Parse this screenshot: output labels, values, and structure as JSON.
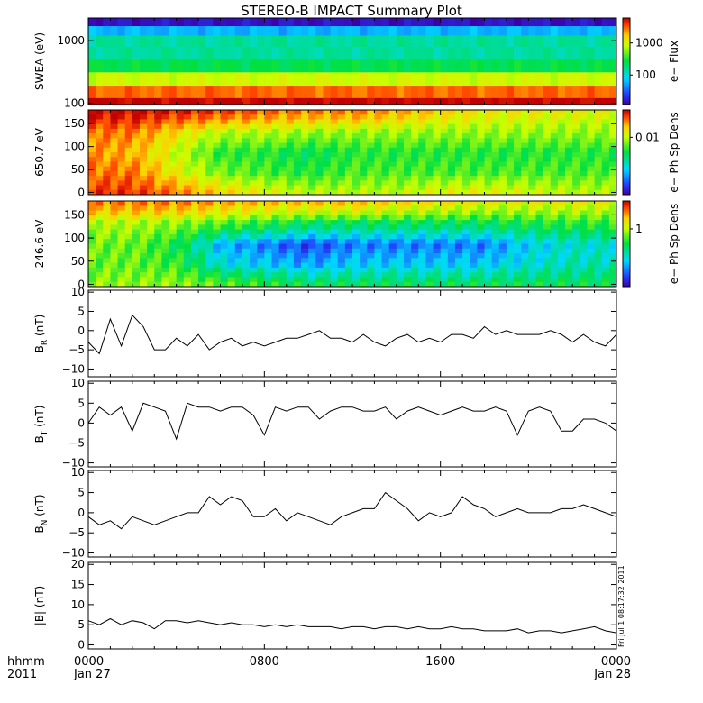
{
  "title": "STEREO-B IMPACT Summary Plot",
  "stamp": "Fri Jul  1 08:17:32 2011",
  "time_axis": {
    "row1_label": "hhmm",
    "row2_label": "2011",
    "ticks": [
      {
        "hour": 0,
        "label": "0000",
        "date": "Jan 27"
      },
      {
        "hour": 8,
        "label": "0800",
        "date": ""
      },
      {
        "hour": 16,
        "label": "1600",
        "date": ""
      },
      {
        "hour": 24,
        "label": "0000",
        "date": "Jan 28"
      }
    ]
  },
  "chart_data": [
    {
      "type": "heatmap",
      "ylabel": "SWEA (eV)",
      "ylog": true,
      "ylim": [
        95,
        2300
      ],
      "yticks": [
        {
          "value": 100,
          "label": "100"
        },
        {
          "value": 1000,
          "label": "1000"
        }
      ],
      "colorbar_label": "e− Flux",
      "colorbar_ticks": [
        {
          "value": 100,
          "label": "100"
        },
        {
          "value": 1000,
          "label": "1000"
        }
      ],
      "colorbar_log": true,
      "colorbar_range": [
        12,
        6000
      ],
      "x_hours": [
        0,
        2,
        4,
        6,
        8,
        10,
        12,
        14,
        16,
        18,
        20,
        22,
        24
      ],
      "energies_eV": [
        100,
        150,
        250,
        400,
        650,
        1000,
        1500,
        2000
      ],
      "profile_flux": [
        6000,
        3000,
        900,
        250,
        150,
        150,
        60,
        15
      ]
    },
    {
      "type": "heatmap",
      "ylabel": "650.7 eV",
      "ylim": [
        -5,
        180
      ],
      "yticks": [
        {
          "value": 0,
          "label": "0"
        },
        {
          "value": 50,
          "label": "50"
        },
        {
          "value": 100,
          "label": "100"
        },
        {
          "value": 150,
          "label": "150"
        }
      ],
      "colorbar_label": "e− Ph Sp Dens",
      "colorbar_ticks": [
        {
          "value": 0.01,
          "label": "0.01"
        }
      ],
      "colorbar_log": true,
      "colorbar_range": [
        0.001,
        0.03
      ],
      "x_hours": [
        0,
        2,
        4,
        6,
        8,
        10,
        12,
        14,
        16,
        18,
        20,
        22,
        24
      ],
      "pitch_angles": [
        0,
        45,
        90,
        135,
        180
      ],
      "values": [
        [
          0.025,
          0.025,
          0.02,
          0.015,
          0.012,
          0.01,
          0.01,
          0.01,
          0.012,
          0.012,
          0.011,
          0.01,
          0.01
        ],
        [
          0.02,
          0.02,
          0.012,
          0.008,
          0.007,
          0.006,
          0.007,
          0.007,
          0.007,
          0.007,
          0.007,
          0.007,
          0.007
        ],
        [
          0.018,
          0.016,
          0.01,
          0.006,
          0.006,
          0.005,
          0.006,
          0.006,
          0.006,
          0.006,
          0.006,
          0.006,
          0.006
        ],
        [
          0.02,
          0.02,
          0.014,
          0.01,
          0.01,
          0.009,
          0.009,
          0.009,
          0.009,
          0.009,
          0.009,
          0.009,
          0.009
        ],
        [
          0.03,
          0.03,
          0.028,
          0.025,
          0.022,
          0.02,
          0.02,
          0.018,
          0.015,
          0.013,
          0.013,
          0.012,
          0.012
        ]
      ]
    },
    {
      "type": "heatmap",
      "ylabel": "246.6 eV",
      "ylim": [
        -5,
        180
      ],
      "yticks": [
        {
          "value": 0,
          "label": "0"
        },
        {
          "value": 50,
          "label": "50"
        },
        {
          "value": 100,
          "label": "100"
        },
        {
          "value": 150,
          "label": "150"
        }
      ],
      "colorbar_label": "e− Ph Sp Dens",
      "colorbar_ticks": [
        {
          "value": 1,
          "label": "1"
        }
      ],
      "colorbar_log": true,
      "colorbar_range": [
        0.15,
        2.5
      ],
      "x_hours": [
        0,
        2,
        4,
        6,
        8,
        10,
        12,
        14,
        16,
        18,
        20,
        22,
        24
      ],
      "pitch_angles": [
        0,
        45,
        90,
        135,
        180
      ],
      "values": [
        [
          0.9,
          0.9,
          0.9,
          0.8,
          0.7,
          0.6,
          0.6,
          0.6,
          0.6,
          0.6,
          0.6,
          0.6,
          0.6
        ],
        [
          0.8,
          0.8,
          0.7,
          0.4,
          0.35,
          0.3,
          0.35,
          0.35,
          0.35,
          0.35,
          0.4,
          0.45,
          0.45
        ],
        [
          0.8,
          0.8,
          0.6,
          0.3,
          0.25,
          0.2,
          0.25,
          0.25,
          0.25,
          0.25,
          0.35,
          0.4,
          0.4
        ],
        [
          1.0,
          1.0,
          0.9,
          0.8,
          0.7,
          0.6,
          0.6,
          0.6,
          0.6,
          0.6,
          0.65,
          0.7,
          0.7
        ],
        [
          1.8,
          1.8,
          1.8,
          1.6,
          1.5,
          1.5,
          1.5,
          1.4,
          1.3,
          1.2,
          1.2,
          1.2,
          1.2
        ]
      ]
    },
    {
      "type": "line",
      "ylabel": "B",
      "ysub": "R",
      "yunit": "(nT)",
      "ylim": [
        -12,
        10.5
      ],
      "yticks": [
        {
          "value": -10,
          "label": "−10"
        },
        {
          "value": -5,
          "label": "−5"
        },
        {
          "value": 0,
          "label": "0"
        },
        {
          "value": 5,
          "label": "5"
        },
        {
          "value": 10,
          "label": "10"
        }
      ],
      "x_hours": [
        0,
        0.5,
        1,
        1.5,
        2,
        2.5,
        3,
        3.5,
        4,
        4.5,
        5,
        5.5,
        6,
        6.5,
        7,
        7.5,
        8,
        8.5,
        9,
        9.5,
        10,
        10.5,
        11,
        11.5,
        12,
        12.5,
        13,
        13.5,
        14,
        14.5,
        15,
        15.5,
        16,
        16.5,
        17,
        17.5,
        18,
        18.5,
        19,
        19.5,
        20,
        20.5,
        21,
        21.5,
        22,
        22.5,
        23,
        23.5,
        24
      ],
      "y": [
        -3,
        -6,
        3,
        -4,
        4,
        1,
        -5,
        -5,
        -2,
        -4,
        -1,
        -5,
        -3,
        -2,
        -4,
        -3,
        -4,
        -3,
        -2,
        -2,
        -1,
        0,
        -2,
        -2,
        -3,
        -1,
        -3,
        -4,
        -2,
        -1,
        -3,
        -2,
        -3,
        -1,
        -1,
        -2,
        1,
        -1,
        0,
        -1,
        -1,
        -1,
        0,
        -1,
        -3,
        -1,
        -3,
        -4,
        -1
      ]
    },
    {
      "type": "line",
      "ylabel": "B",
      "ysub": "T",
      "yunit": "(nT)",
      "ylim": [
        -11,
        10.5
      ],
      "yticks": [
        {
          "value": -10,
          "label": "−10"
        },
        {
          "value": -5,
          "label": "−5"
        },
        {
          "value": 0,
          "label": "0"
        },
        {
          "value": 5,
          "label": "5"
        },
        {
          "value": 10,
          "label": "10"
        }
      ],
      "x_hours": [
        0,
        0.5,
        1,
        1.5,
        2,
        2.5,
        3,
        3.5,
        4,
        4.5,
        5,
        5.5,
        6,
        6.5,
        7,
        7.5,
        8,
        8.5,
        9,
        9.5,
        10,
        10.5,
        11,
        11.5,
        12,
        12.5,
        13,
        13.5,
        14,
        14.5,
        15,
        15.5,
        16,
        16.5,
        17,
        17.5,
        18,
        18.5,
        19,
        19.5,
        20,
        20.5,
        21,
        21.5,
        22,
        22.5,
        23,
        23.5,
        24
      ],
      "y": [
        0,
        4,
        2,
        4,
        -2,
        5,
        4,
        3,
        -4,
        5,
        4,
        4,
        3,
        4,
        4,
        2,
        -3,
        4,
        3,
        4,
        4,
        1,
        3,
        4,
        4,
        3,
        3,
        4,
        1,
        3,
        4,
        3,
        2,
        3,
        4,
        3,
        3,
        4,
        3,
        -3,
        3,
        4,
        3,
        -2,
        -2,
        1,
        1,
        0,
        -2
      ]
    },
    {
      "type": "line",
      "ylabel": "B",
      "ysub": "N",
      "yunit": "(nT)",
      "ylim": [
        -11,
        10.5
      ],
      "yticks": [
        {
          "value": -10,
          "label": "−10"
        },
        {
          "value": -5,
          "label": "−5"
        },
        {
          "value": 0,
          "label": "0"
        },
        {
          "value": 5,
          "label": "5"
        },
        {
          "value": 10,
          "label": "10"
        }
      ],
      "x_hours": [
        0,
        0.5,
        1,
        1.5,
        2,
        2.5,
        3,
        3.5,
        4,
        4.5,
        5,
        5.5,
        6,
        6.5,
        7,
        7.5,
        8,
        8.5,
        9,
        9.5,
        10,
        10.5,
        11,
        11.5,
        12,
        12.5,
        13,
        13.5,
        14,
        14.5,
        15,
        15.5,
        16,
        16.5,
        17,
        17.5,
        18,
        18.5,
        19,
        19.5,
        20,
        20.5,
        21,
        21.5,
        22,
        22.5,
        23,
        23.5,
        24
      ],
      "y": [
        -1,
        -3,
        -2,
        -4,
        -1,
        -2,
        -3,
        -2,
        -1,
        0,
        0,
        4,
        2,
        4,
        3,
        -1,
        -1,
        1,
        -2,
        0,
        -1,
        -2,
        -3,
        -1,
        0,
        1,
        1,
        5,
        3,
        1,
        -2,
        0,
        -1,
        0,
        4,
        2,
        1,
        -1,
        0,
        1,
        0,
        0,
        0,
        1,
        1,
        2,
        1,
        0,
        -1
      ]
    },
    {
      "type": "line",
      "ylabel": "|B|",
      "yunit": "(nT)",
      "ylim": [
        -1,
        20.5
      ],
      "yticks": [
        {
          "value": 0,
          "label": "0"
        },
        {
          "value": 5,
          "label": "5"
        },
        {
          "value": 10,
          "label": "10"
        },
        {
          "value": 15,
          "label": "15"
        },
        {
          "value": 20,
          "label": "20"
        }
      ],
      "x_hours": [
        0,
        0.5,
        1,
        1.5,
        2,
        2.5,
        3,
        3.5,
        4,
        4.5,
        5,
        5.5,
        6,
        6.5,
        7,
        7.5,
        8,
        8.5,
        9,
        9.5,
        10,
        10.5,
        11,
        11.5,
        12,
        12.5,
        13,
        13.5,
        14,
        14.5,
        15,
        15.5,
        16,
        16.5,
        17,
        17.5,
        18,
        18.5,
        19,
        19.5,
        20,
        20.5,
        21,
        21.5,
        22,
        22.5,
        23,
        23.5,
        24
      ],
      "y": [
        6,
        5,
        6.5,
        5,
        6,
        5.5,
        4,
        6,
        6,
        5.5,
        6,
        5.5,
        5,
        5.5,
        5,
        5,
        4.5,
        5,
        4.5,
        5,
        4.5,
        4.5,
        4.5,
        4,
        4.5,
        4.5,
        4,
        4.5,
        4.5,
        4,
        4.5,
        4,
        4,
        4.5,
        4,
        4,
        3.5,
        3.5,
        3.5,
        4,
        3,
        3.5,
        3.5,
        3,
        3.5,
        4,
        4.5,
        3.5,
        3
      ]
    }
  ]
}
